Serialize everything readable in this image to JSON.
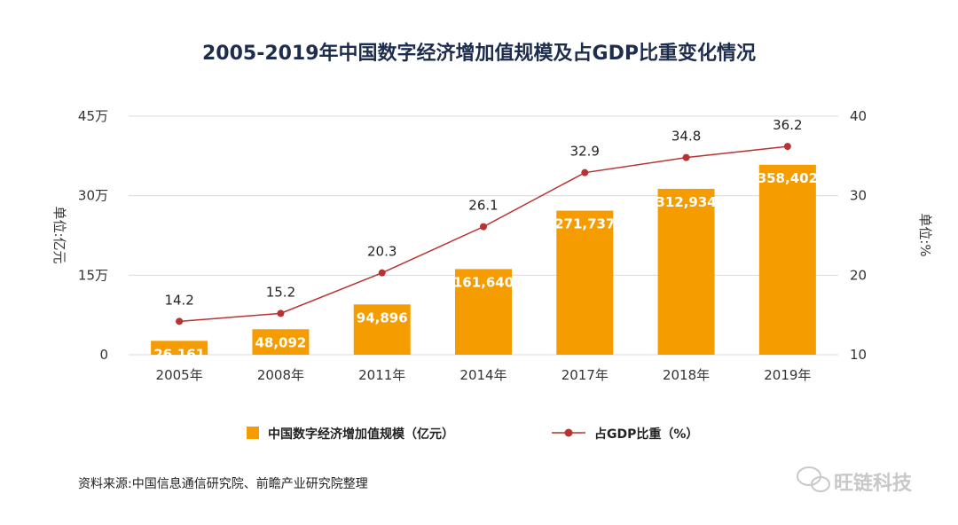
{
  "watermark": {
    "text": "旺链科技",
    "icon": "wechat-icon"
  },
  "source": "资料来源:中国信息通信研究院、前瞻产业研究院整理",
  "colors": {
    "bar": "#f59d00",
    "line": "#b83232",
    "title": "#1f2d4d",
    "grid": "#d9d9d9"
  },
  "chart_data": {
    "type": "bar",
    "title": "2005-2019年中国数字经济增加值规模及占GDP比重变化情况",
    "categories": [
      "2005年",
      "2008年",
      "2011年",
      "2014年",
      "2017年",
      "2018年",
      "2019年"
    ],
    "ylabel_left": "单位:亿元",
    "ylabel_right": "单位:%",
    "left_axis": {
      "ticks": [
        0,
        150000,
        300000,
        450000
      ],
      "tick_labels": [
        "0",
        "15万",
        "30万",
        "45万"
      ],
      "ylim": [
        0,
        450000
      ]
    },
    "right_axis": {
      "ticks": [
        10,
        20,
        30,
        40
      ],
      "tick_labels": [
        "10",
        "20",
        "30",
        "40"
      ],
      "ylim": [
        10,
        40
      ]
    },
    "grid": true,
    "legend_position": "bottom",
    "series": [
      {
        "name": "中国数字经济增加值规模（亿元）",
        "type": "bar",
        "axis": "left",
        "values": [
          26161,
          48092,
          94896,
          161640,
          271737,
          312934,
          358402
        ],
        "labels": [
          "26,161",
          "48,092",
          "94,896",
          "161,640",
          "271,737",
          "312,934",
          "358,402"
        ]
      },
      {
        "name": "占GDP比重（%）",
        "type": "line",
        "axis": "right",
        "values": [
          14.2,
          15.2,
          20.3,
          26.1,
          32.9,
          34.8,
          36.2
        ],
        "labels": [
          "14.2",
          "15.2",
          "20.3",
          "26.1",
          "32.9",
          "34.8",
          "36.2"
        ]
      }
    ]
  }
}
